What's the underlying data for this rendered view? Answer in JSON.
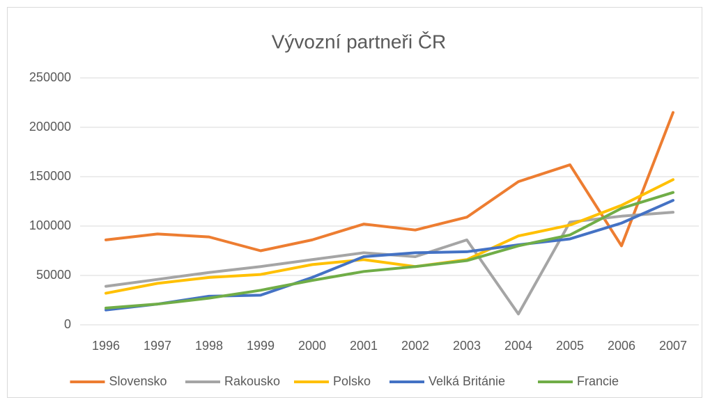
{
  "chart_data": {
    "type": "line",
    "title": "Vývozní partneři ČR",
    "categories": [
      "1996",
      "1997",
      "1998",
      "1999",
      "2000",
      "2001",
      "2002",
      "2003",
      "2004",
      "2005",
      "2006",
      "2007"
    ],
    "ylim": [
      0,
      250000
    ],
    "yticks": [
      0,
      50000,
      100000,
      150000,
      200000,
      250000
    ],
    "grid": true,
    "legend": "bottom",
    "series": [
      {
        "name": "Slovensko",
        "color": "#ed7d31",
        "values": [
          86000,
          92000,
          89000,
          75000,
          86000,
          102000,
          96000,
          109000,
          145000,
          162000,
          80000,
          215000
        ]
      },
      {
        "name": "Rakousko",
        "color": "#a5a5a5",
        "values": [
          39000,
          46000,
          53000,
          59000,
          66000,
          73000,
          69000,
          86000,
          11000,
          104000,
          110000,
          114000
        ]
      },
      {
        "name": "Polsko",
        "color": "#ffc000",
        "values": [
          32000,
          42000,
          48000,
          51000,
          61000,
          66000,
          59000,
          66000,
          90000,
          101000,
          121000,
          147000
        ]
      },
      {
        "name": "Velká Británie",
        "color": "#4472c4",
        "values": [
          15000,
          21000,
          29000,
          30000,
          48000,
          69000,
          73000,
          74000,
          81000,
          87000,
          103000,
          126000
        ]
      },
      {
        "name": "Francie",
        "color": "#70ad47",
        "values": [
          17000,
          21000,
          27000,
          35000,
          45000,
          54000,
          59000,
          65000,
          80000,
          91000,
          118000,
          134000
        ]
      }
    ]
  }
}
